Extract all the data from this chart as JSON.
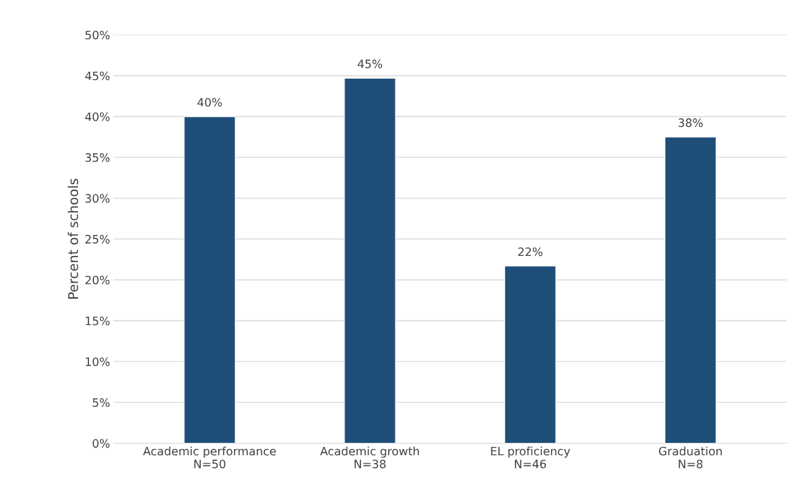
{
  "chart_data": {
    "type": "bar",
    "categories": [
      "Academic performance\nN=50",
      "Academic growth\nN=38",
      "EL proficiency\nN=46",
      "Graduation\nN=8"
    ],
    "values": [
      40,
      44.7,
      21.7,
      37.5
    ],
    "value_labels": [
      "40%",
      "45%",
      "22%",
      "38%"
    ],
    "color": "#1f4e79",
    "ylabel": "Percent of schools",
    "ylim": [
      0,
      50
    ],
    "yticks": [
      {
        "value": 0,
        "label": "0%"
      },
      {
        "value": 5,
        "label": "5%"
      },
      {
        "value": 10,
        "label": "10%"
      },
      {
        "value": 15,
        "label": "15%"
      },
      {
        "value": 20,
        "label": "20%"
      },
      {
        "value": 25,
        "label": "25%"
      },
      {
        "value": 30,
        "label": "30%"
      },
      {
        "value": 35,
        "label": "35%"
      },
      {
        "value": 40,
        "label": "40%"
      },
      {
        "value": 45,
        "label": "45%"
      },
      {
        "value": 50,
        "label": "50%"
      }
    ],
    "grid": "y",
    "legend": false
  }
}
